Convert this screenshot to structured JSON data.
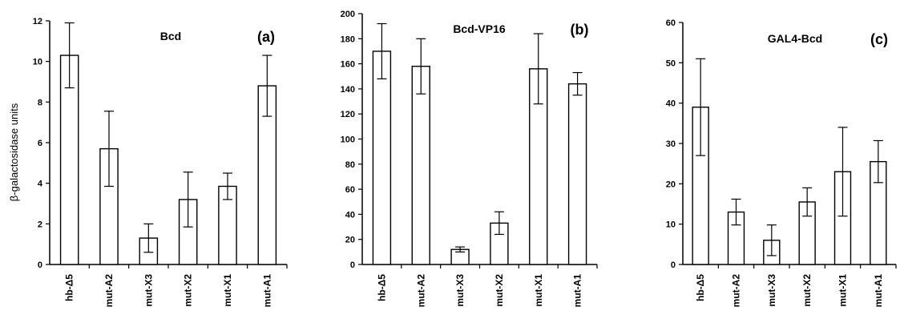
{
  "ylabel": "β-galactosidase units",
  "chart_data": [
    {
      "type": "bar",
      "title": "Bcd",
      "panel_label": "(a)",
      "categories": [
        "hb-Δ5",
        "mut-A2",
        "mut-X3",
        "mut-X2",
        "mut-X1",
        "mut-A1"
      ],
      "values": [
        10.3,
        5.7,
        1.3,
        3.2,
        3.85,
        8.8
      ],
      "errors": [
        1.6,
        1.85,
        0.7,
        1.35,
        0.65,
        1.5
      ],
      "ylim": [
        0,
        12
      ],
      "yticks": [
        "0",
        "2",
        "4",
        "6",
        "8",
        "10",
        "12"
      ],
      "ylabel": "β-galactosidase units"
    },
    {
      "type": "bar",
      "title": "Bcd-VP16",
      "panel_label": "(b)",
      "categories": [
        "hb-Δ5",
        "mut-A2",
        "mut-X3",
        "mut-X2",
        "mut-X1",
        "mut-A1"
      ],
      "values": [
        170,
        158,
        12,
        33,
        156,
        144
      ],
      "errors": [
        22,
        22,
        2,
        9,
        28,
        9
      ],
      "ylim": [
        0,
        200
      ],
      "yticks": [
        "0",
        "20",
        "40",
        "60",
        "80",
        "100",
        "120",
        "140",
        "160",
        "180",
        "200"
      ]
    },
    {
      "type": "bar",
      "title": "GAL4-Bcd",
      "panel_label": "(c)",
      "categories": [
        "hb-Δ5",
        "mut-A2",
        "mut-X3",
        "mut-X2",
        "mut-X1",
        "mut-A1"
      ],
      "values": [
        39,
        13,
        6,
        15.5,
        23,
        25.5
      ],
      "errors": [
        12,
        3.2,
        3.8,
        3.5,
        11,
        5.2
      ],
      "ylim": [
        0,
        60
      ],
      "yticks": [
        "0",
        "10",
        "20",
        "30",
        "40",
        "50",
        "60"
      ]
    }
  ]
}
